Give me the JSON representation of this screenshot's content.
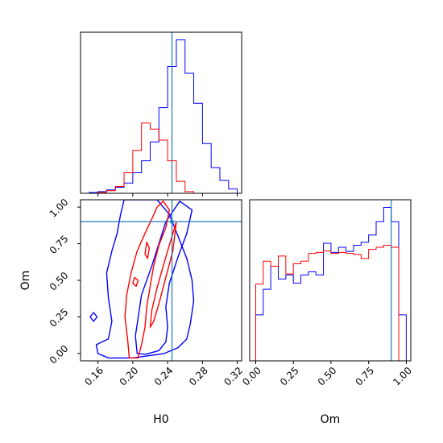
{
  "chart_data": {
    "type": "corner",
    "parameters": [
      "H0",
      "Om"
    ],
    "truth": {
      "H0": 0.245,
      "Om": 0.9
    },
    "panels": [
      {
        "id": "hist-H0",
        "type": "histogram",
        "x_range": [
          0.14,
          0.325
        ],
        "x_ticks": [
          0.16,
          0.2,
          0.24,
          0.28,
          0.32
        ],
        "y_ticks_visible": false,
        "series": [
          {
            "color": "#0000ff",
            "bin_edges": [
              0.14,
              0.15,
              0.16,
              0.17,
              0.18,
              0.19,
              0.2,
              0.21,
              0.22,
              0.23,
              0.24,
              0.25,
              0.26,
              0.27,
              0.28,
              0.29,
              0.3,
              0.31,
              0.32
            ],
            "counts": [
              0,
              1,
              2,
              4,
              7,
              12,
              24,
              38,
              60,
              100,
              148,
              179,
              140,
              105,
              58,
              30,
              15,
              5
            ]
          },
          {
            "color": "#ff0000",
            "bin_edges": [
              0.16,
              0.17,
              0.18,
              0.19,
              0.2,
              0.21,
              0.22,
              0.23,
              0.24,
              0.25,
              0.26,
              0.27
            ],
            "counts": [
              1,
              3,
              8,
              24,
              50,
              82,
              75,
              62,
              38,
              14,
              2
            ]
          }
        ]
      },
      {
        "id": "contour-H0-Om",
        "type": "contour",
        "x_range": [
          0.14,
          0.325
        ],
        "y_range": [
          -0.05,
          1.05
        ],
        "x_ticks": [
          0.16,
          0.2,
          0.24,
          0.28,
          0.32
        ],
        "y_ticks": [
          0.0,
          0.25,
          0.5,
          0.75,
          1.0
        ],
        "x_label": "H0",
        "y_label": "Om",
        "series": [
          {
            "color": "#0000ff",
            "levels": [
              [
                [
                  0.16,
                  0.0
                ],
                [
                  0.158,
                  0.06
                ],
                [
                  0.172,
                  0.1
                ],
                [
                  0.176,
                  0.22
                ],
                [
                  0.172,
                  0.38
                ],
                [
                  0.17,
                  0.55
                ],
                [
                  0.176,
                  0.7
                ],
                [
                  0.182,
                  0.82
                ],
                [
                  0.186,
                  0.95
                ],
                [
                  0.19,
                  1.05
                ],
                [
                  0.228,
                  1.05
                ],
                [
                  0.242,
                  0.95
                ],
                [
                  0.252,
                  0.8
                ],
                [
                  0.262,
                  0.65
                ],
                [
                  0.268,
                  0.5
                ],
                [
                  0.27,
                  0.36
                ],
                [
                  0.266,
                  0.2
                ],
                [
                  0.262,
                  0.1
                ],
                [
                  0.252,
                  0.04
                ],
                [
                  0.236,
                  0.0
                ],
                [
                  0.2,
                  -0.03
                ],
                [
                  0.172,
                  -0.03
                ]
              ],
              [
                [
                  0.205,
                  0.0
                ],
                [
                  0.203,
                  0.12
                ],
                [
                  0.21,
                  0.4
                ],
                [
                  0.222,
                  0.6
                ],
                [
                  0.23,
                  0.75
                ],
                [
                  0.238,
                  0.9
                ],
                [
                  0.254,
                  1.04
                ],
                [
                  0.268,
                  0.98
                ],
                [
                  0.262,
                  0.82
                ],
                [
                  0.252,
                  0.66
                ],
                [
                  0.242,
                  0.48
                ],
                [
                  0.238,
                  0.32
                ],
                [
                  0.24,
                  0.18
                ],
                [
                  0.238,
                  0.08
                ],
                [
                  0.23,
                  0.02
                ],
                [
                  0.215,
                  -0.005
                ]
              ],
              [
                [
                  0.151,
                  0.25
                ],
                [
                  0.155,
                  0.22
                ],
                [
                  0.159,
                  0.25
                ],
                [
                  0.155,
                  0.28
                ]
              ]
            ]
          },
          {
            "color": "#ff0000",
            "levels": [
              [
                [
                  0.196,
                  -0.03
                ],
                [
                  0.194,
                  0.1
                ],
                [
                  0.191,
                  0.25
                ],
                [
                  0.193,
                  0.4
                ],
                [
                  0.198,
                  0.55
                ],
                [
                  0.205,
                  0.7
                ],
                [
                  0.214,
                  0.82
                ],
                [
                  0.222,
                  0.92
                ],
                [
                  0.228,
                  1.0
                ],
                [
                  0.235,
                  1.04
                ],
                [
                  0.242,
                  0.98
                ],
                [
                  0.238,
                  0.86
                ],
                [
                  0.23,
                  0.74
                ],
                [
                  0.224,
                  0.6
                ],
                [
                  0.22,
                  0.46
                ],
                [
                  0.216,
                  0.32
                ],
                [
                  0.214,
                  0.18
                ],
                [
                  0.21,
                  0.06
                ],
                [
                  0.206,
                  -0.03
                ]
              ],
              [
                [
                  0.222,
                  0.3
                ],
                [
                  0.228,
                  0.45
                ],
                [
                  0.236,
                  0.62
                ],
                [
                  0.245,
                  0.8
                ],
                [
                  0.25,
                  0.9
                ],
                [
                  0.246,
                  0.7
                ],
                [
                  0.238,
                  0.52
                ],
                [
                  0.23,
                  0.34
                ],
                [
                  0.224,
                  0.22
                ],
                [
                  0.22,
                  0.18
                ]
              ],
              [
                [
                  0.2,
                  0.48
                ],
                [
                  0.204,
                  0.46
                ],
                [
                  0.206,
                  0.5
                ],
                [
                  0.202,
                  0.52
                ]
              ],
              [
                [
                  0.214,
                  0.68
                ],
                [
                  0.217,
                  0.65
                ],
                [
                  0.219,
                  0.72
                ],
                [
                  0.216,
                  0.76
                ]
              ]
            ]
          }
        ]
      },
      {
        "id": "hist-Om",
        "type": "histogram",
        "x_range": [
          -0.04,
          1.03
        ],
        "x_ticks": [
          0.0,
          0.25,
          0.5,
          0.75,
          1.0
        ],
        "x_label": "Om",
        "y_ticks_visible": false,
        "series": [
          {
            "color": "#0000ff",
            "bin_edges": [
              0.0,
              0.05,
              0.1,
              0.15,
              0.2,
              0.25,
              0.3,
              0.35,
              0.4,
              0.45,
              0.5,
              0.55,
              0.6,
              0.65,
              0.7,
              0.75,
              0.8,
              0.85,
              0.9,
              0.95,
              1.0
            ],
            "counts": [
              90,
              140,
              185,
              160,
              168,
              152,
              168,
              174,
              168,
              230,
              212,
              222,
              214,
              226,
              232,
              246,
              272,
              300,
              272,
              90
            ]
          },
          {
            "color": "#ff0000",
            "bin_edges": [
              0.0,
              0.05,
              0.1,
              0.15,
              0.2,
              0.25,
              0.3,
              0.35,
              0.4,
              0.45,
              0.5,
              0.55,
              0.6,
              0.65,
              0.7,
              0.75,
              0.8,
              0.85,
              0.9,
              0.95
            ],
            "counts": [
              150,
              195,
              185,
              205,
              170,
              190,
              195,
              210,
              212,
              215,
              210,
              212,
              210,
              208,
              200,
              218,
              222,
              226,
              222
            ]
          }
        ]
      }
    ]
  }
}
